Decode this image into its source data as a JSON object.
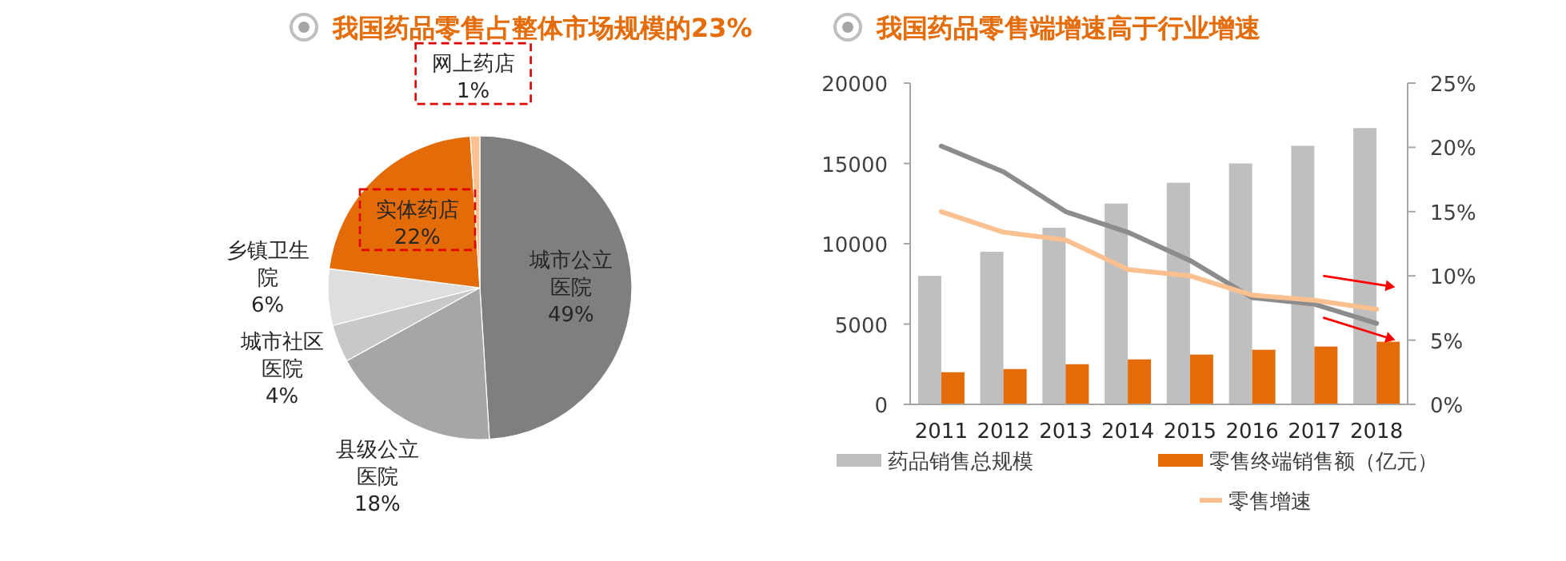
{
  "chart_data": [
    {
      "type": "pie",
      "title": "我国药品零售占整体市场规模的23%",
      "categories": [
        "城市公立医院",
        "县级公立医院",
        "城市社区医院",
        "乡镇卫生院",
        "实体药店",
        "网上药店"
      ],
      "values": [
        49,
        18,
        4,
        6,
        22,
        1
      ],
      "colors": [
        "#7f7f7f",
        "#a6a6a6",
        "#c8c8c8",
        "#dedede",
        "#e36c09",
        "#fac090"
      ],
      "value_labels": [
        "49%",
        "18%",
        "4%",
        "6%",
        "22%",
        "1%"
      ]
    },
    {
      "type": "bar",
      "title": "我国药品零售端增速高于行业增速",
      "categories": [
        "2011",
        "2012",
        "2013",
        "2014",
        "2015",
        "2016",
        "2017",
        "2018"
      ],
      "series": [
        {
          "name": "药品销售总规模",
          "color": "#bfbfbf",
          "values": [
            8000,
            9500,
            11000,
            12500,
            13800,
            15000,
            16100,
            17200
          ]
        },
        {
          "name": "零售终端销售额（亿元）",
          "color": "#e36c09",
          "values": [
            2000,
            2200,
            2500,
            2800,
            3100,
            3400,
            3600,
            3900
          ]
        },
        {
          "type": "line",
          "color": "#8c8c8c",
          "axis": "y2",
          "values": [
            20.1,
            18.1,
            15.0,
            13.4,
            11.2,
            8.3,
            7.8,
            6.3
          ]
        },
        {
          "type": "line",
          "name": "零售增速",
          "color": "#fac090",
          "axis": "y2",
          "values": [
            15.0,
            13.4,
            12.8,
            10.5,
            10.0,
            8.5,
            8.1,
            7.4
          ]
        }
      ],
      "ylim": [
        0,
        20000
      ],
      "yticks": [
        0,
        5000,
        10000,
        15000,
        20000
      ],
      "y2lim": [
        0,
        25
      ],
      "y2ticks": [
        {
          "value": 0,
          "label": "0%"
        },
        {
          "value": 5,
          "label": "5%"
        },
        {
          "value": 10,
          "label": "10%"
        },
        {
          "value": 15,
          "label": "15%"
        },
        {
          "value": 20,
          "label": "20%"
        },
        {
          "value": 25,
          "label": "25%"
        }
      ],
      "legend": "bottom",
      "grid": false
    }
  ]
}
